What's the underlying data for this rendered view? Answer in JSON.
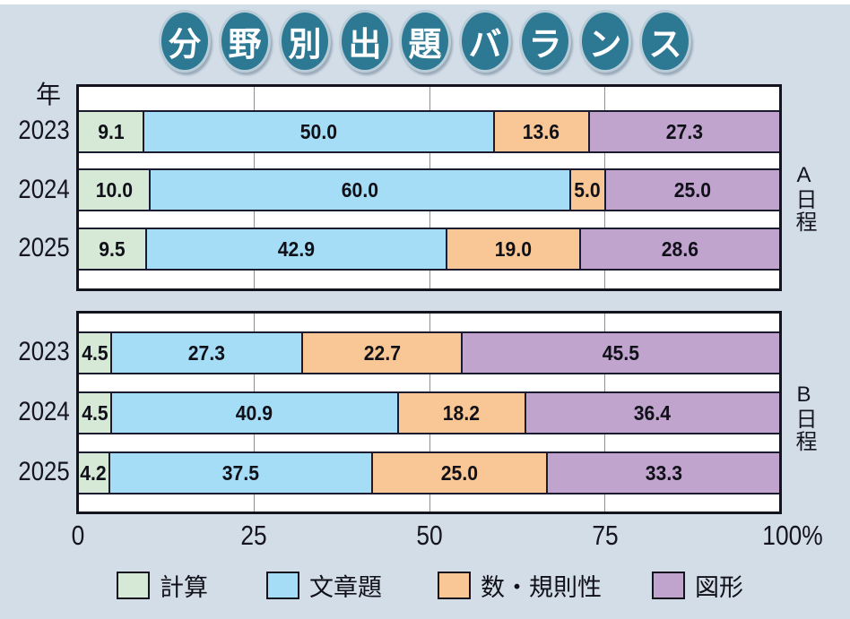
{
  "title": {
    "text": "分野別出題バランス",
    "characters": [
      "分",
      "野",
      "別",
      "出",
      "題",
      "バ",
      "ラ",
      "ン",
      "ス"
    ]
  },
  "colors": {
    "background": "#d3dde7",
    "badge_fill": "#2d7994",
    "badge_ring": "#b9cdd9",
    "series": [
      "#d6e9d6",
      "#a6ddf6",
      "#f8c795",
      "#c0a4ce"
    ],
    "segment_border": "#1b1b30",
    "box_border": "#14141e",
    "gridline": "#8f8f8f",
    "text": "#15151f"
  },
  "axis": {
    "unit_label": "年",
    "ticks": [
      "0",
      "25",
      "50",
      "75",
      "100%"
    ]
  },
  "legend": [
    {
      "label": "計算"
    },
    {
      "label": "文章題"
    },
    {
      "label": "数・規則性"
    },
    {
      "label": "図形"
    }
  ],
  "chart_data": {
    "type": "bar",
    "orientation": "horizontal",
    "stacked": true,
    "unit": "percent",
    "xlim": [
      0,
      100
    ],
    "x_ticks": [
      0,
      25,
      50,
      75,
      100
    ],
    "grid": true,
    "legend_position": "bottom",
    "categories": [
      "計算",
      "文章題",
      "数・規則性",
      "図形"
    ],
    "groups": [
      {
        "label": "A日程",
        "rows": [
          {
            "year": "2023",
            "values": [
              9.1,
              50.0,
              13.6,
              27.3
            ]
          },
          {
            "year": "2024",
            "values": [
              10.0,
              60.0,
              5.0,
              25.0
            ]
          },
          {
            "year": "2025",
            "values": [
              9.5,
              42.9,
              19.0,
              28.6
            ]
          }
        ]
      },
      {
        "label": "B日程",
        "rows": [
          {
            "year": "2023",
            "values": [
              4.5,
              27.3,
              22.7,
              45.5
            ]
          },
          {
            "year": "2024",
            "values": [
              4.5,
              40.9,
              18.2,
              36.4
            ]
          },
          {
            "year": "2025",
            "values": [
              4.2,
              37.5,
              25.0,
              33.3
            ]
          }
        ]
      }
    ]
  }
}
